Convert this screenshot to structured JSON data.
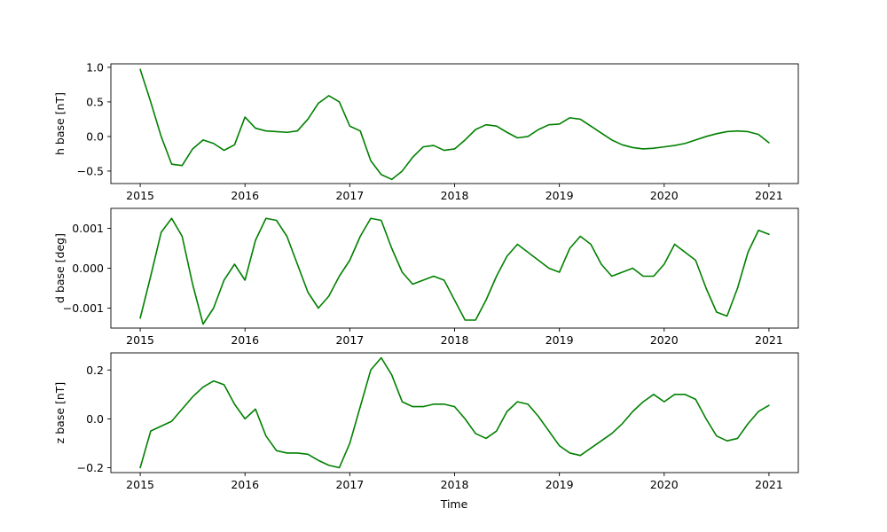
{
  "chart_data": [
    {
      "type": "line",
      "title": "",
      "xlabel": "",
      "ylabel": "h base [nT]",
      "xlim": [
        2014.72,
        2021.28
      ],
      "ylim": [
        -0.68,
        1.05
      ],
      "xticks": [
        2015,
        2016,
        2017,
        2018,
        2019,
        2020,
        2021
      ],
      "xtick_labels": [
        "2015",
        "2016",
        "2017",
        "2018",
        "2019",
        "2020",
        "2021"
      ],
      "yticks": [
        1.0,
        0.5,
        0.0,
        -0.5
      ],
      "ytick_labels": [
        "1.0",
        "0.5",
        "0.0",
        "−0.5"
      ],
      "grid": false,
      "series": [
        {
          "color": "#008000",
          "x": [
            2015.0,
            2015.1,
            2015.2,
            2015.3,
            2015.4,
            2015.5,
            2015.6,
            2015.7,
            2015.8,
            2015.9,
            2016.0,
            2016.1,
            2016.2,
            2016.3,
            2016.4,
            2016.5,
            2016.6,
            2016.7,
            2016.8,
            2016.9,
            2017.0,
            2017.1,
            2017.2,
            2017.3,
            2017.4,
            2017.5,
            2017.6,
            2017.7,
            2017.8,
            2017.9,
            2018.0,
            2018.1,
            2018.2,
            2018.3,
            2018.4,
            2018.5,
            2018.6,
            2018.7,
            2018.8,
            2018.9,
            2019.0,
            2019.1,
            2019.2,
            2019.3,
            2019.4,
            2019.5,
            2019.6,
            2019.7,
            2019.8,
            2019.9,
            2020.0,
            2020.1,
            2020.2,
            2020.3,
            2020.4,
            2020.5,
            2020.6,
            2020.7,
            2020.8,
            2020.9,
            2021.0
          ],
          "y": [
            0.97,
            0.5,
            0.0,
            -0.4,
            -0.42,
            -0.18,
            -0.05,
            -0.1,
            -0.2,
            -0.12,
            0.28,
            0.12,
            0.08,
            0.07,
            0.06,
            0.08,
            0.25,
            0.48,
            0.59,
            0.5,
            0.15,
            0.08,
            -0.35,
            -0.55,
            -0.62,
            -0.5,
            -0.3,
            -0.15,
            -0.13,
            -0.2,
            -0.18,
            -0.05,
            0.1,
            0.17,
            0.15,
            0.06,
            -0.02,
            0.0,
            0.1,
            0.17,
            0.18,
            0.27,
            0.25,
            0.15,
            0.05,
            -0.05,
            -0.12,
            -0.16,
            -0.18,
            -0.17,
            -0.15,
            -0.13,
            -0.1,
            -0.05,
            0.0,
            0.04,
            0.07,
            0.08,
            0.07,
            0.03,
            -0.09
          ]
        }
      ]
    },
    {
      "type": "line",
      "title": "",
      "xlabel": "",
      "ylabel": "d base [deg]",
      "xlim": [
        2014.72,
        2021.28
      ],
      "ylim": [
        -0.0015,
        0.0015
      ],
      "xticks": [
        2015,
        2016,
        2017,
        2018,
        2019,
        2020,
        2021
      ],
      "xtick_labels": [
        "2015",
        "2016",
        "2017",
        "2018",
        "2019",
        "2020",
        "2021"
      ],
      "yticks": [
        0.001,
        0.0,
        -0.001
      ],
      "ytick_labels": [
        "0.001",
        "0.000",
        "−0.001"
      ],
      "grid": false,
      "series": [
        {
          "color": "#008000",
          "x": [
            2015.0,
            2015.1,
            2015.2,
            2015.3,
            2015.4,
            2015.5,
            2015.6,
            2015.7,
            2015.8,
            2015.9,
            2016.0,
            2016.1,
            2016.2,
            2016.3,
            2016.4,
            2016.5,
            2016.6,
            2016.7,
            2016.8,
            2016.9,
            2017.0,
            2017.1,
            2017.2,
            2017.3,
            2017.4,
            2017.5,
            2017.6,
            2017.7,
            2017.8,
            2017.9,
            2018.0,
            2018.1,
            2018.2,
            2018.3,
            2018.4,
            2018.5,
            2018.6,
            2018.7,
            2018.8,
            2018.9,
            2019.0,
            2019.1,
            2019.2,
            2019.3,
            2019.4,
            2019.5,
            2019.6,
            2019.7,
            2019.8,
            2019.9,
            2020.0,
            2020.1,
            2020.2,
            2020.3,
            2020.4,
            2020.5,
            2020.6,
            2020.7,
            2020.8,
            2020.9,
            2021.0
          ],
          "y": [
            -0.00125,
            -0.0002,
            0.0009,
            0.00125,
            0.0008,
            -0.0004,
            -0.0014,
            -0.001,
            -0.0003,
            0.0001,
            -0.0003,
            0.0007,
            0.00125,
            0.0012,
            0.0008,
            0.0001,
            -0.0006,
            -0.001,
            -0.0007,
            -0.0002,
            0.0002,
            0.0008,
            0.00125,
            0.0012,
            0.0005,
            -0.0001,
            -0.0004,
            -0.0003,
            -0.0002,
            -0.0003,
            -0.0008,
            -0.0013,
            -0.0013,
            -0.0008,
            -0.0002,
            0.0003,
            0.0006,
            0.0004,
            0.0002,
            0.0,
            -0.0001,
            0.0005,
            0.0008,
            0.0006,
            0.0001,
            -0.0002,
            -0.0001,
            0.0,
            -0.0002,
            -0.0002,
            0.0001,
            0.0006,
            0.0004,
            0.0002,
            -0.0005,
            -0.0011,
            -0.0012,
            -0.0005,
            0.0004,
            0.00095,
            0.00085
          ]
        }
      ]
    },
    {
      "type": "line",
      "title": "",
      "xlabel": "Time",
      "ylabel": "z base [nT]",
      "xlim": [
        2014.72,
        2021.28
      ],
      "ylim": [
        -0.22,
        0.27
      ],
      "xticks": [
        2015,
        2016,
        2017,
        2018,
        2019,
        2020,
        2021
      ],
      "xtick_labels": [
        "2015",
        "2016",
        "2017",
        "2018",
        "2019",
        "2020",
        "2021"
      ],
      "yticks": [
        0.2,
        0.0,
        -0.2
      ],
      "ytick_labels": [
        "0.2",
        "0.0",
        "−0.2"
      ],
      "grid": false,
      "series": [
        {
          "color": "#008000",
          "x": [
            2015.0,
            2015.1,
            2015.2,
            2015.3,
            2015.4,
            2015.5,
            2015.6,
            2015.7,
            2015.8,
            2015.9,
            2016.0,
            2016.1,
            2016.2,
            2016.3,
            2016.4,
            2016.5,
            2016.6,
            2016.7,
            2016.8,
            2016.9,
            2017.0,
            2017.1,
            2017.2,
            2017.3,
            2017.4,
            2017.5,
            2017.6,
            2017.7,
            2017.8,
            2017.9,
            2018.0,
            2018.1,
            2018.2,
            2018.3,
            2018.4,
            2018.5,
            2018.6,
            2018.7,
            2018.8,
            2018.9,
            2019.0,
            2019.1,
            2019.2,
            2019.3,
            2019.4,
            2019.5,
            2019.6,
            2019.7,
            2019.8,
            2019.9,
            2020.0,
            2020.1,
            2020.2,
            2020.3,
            2020.4,
            2020.5,
            2020.6,
            2020.7,
            2020.8,
            2020.9,
            2021.0
          ],
          "y": [
            -0.2,
            -0.05,
            -0.03,
            -0.01,
            0.04,
            0.09,
            0.13,
            0.155,
            0.14,
            0.06,
            0.0,
            0.04,
            -0.07,
            -0.13,
            -0.14,
            -0.14,
            -0.145,
            -0.17,
            -0.19,
            -0.2,
            -0.1,
            0.05,
            0.2,
            0.25,
            0.18,
            0.07,
            0.05,
            0.05,
            0.06,
            0.06,
            0.05,
            0.0,
            -0.06,
            -0.08,
            -0.05,
            0.03,
            0.07,
            0.06,
            0.01,
            -0.05,
            -0.11,
            -0.14,
            -0.15,
            -0.12,
            -0.09,
            -0.06,
            -0.02,
            0.03,
            0.07,
            0.1,
            0.07,
            0.1,
            0.1,
            0.08,
            0.0,
            -0.07,
            -0.09,
            -0.08,
            -0.02,
            0.03,
            0.055
          ]
        }
      ]
    }
  ]
}
